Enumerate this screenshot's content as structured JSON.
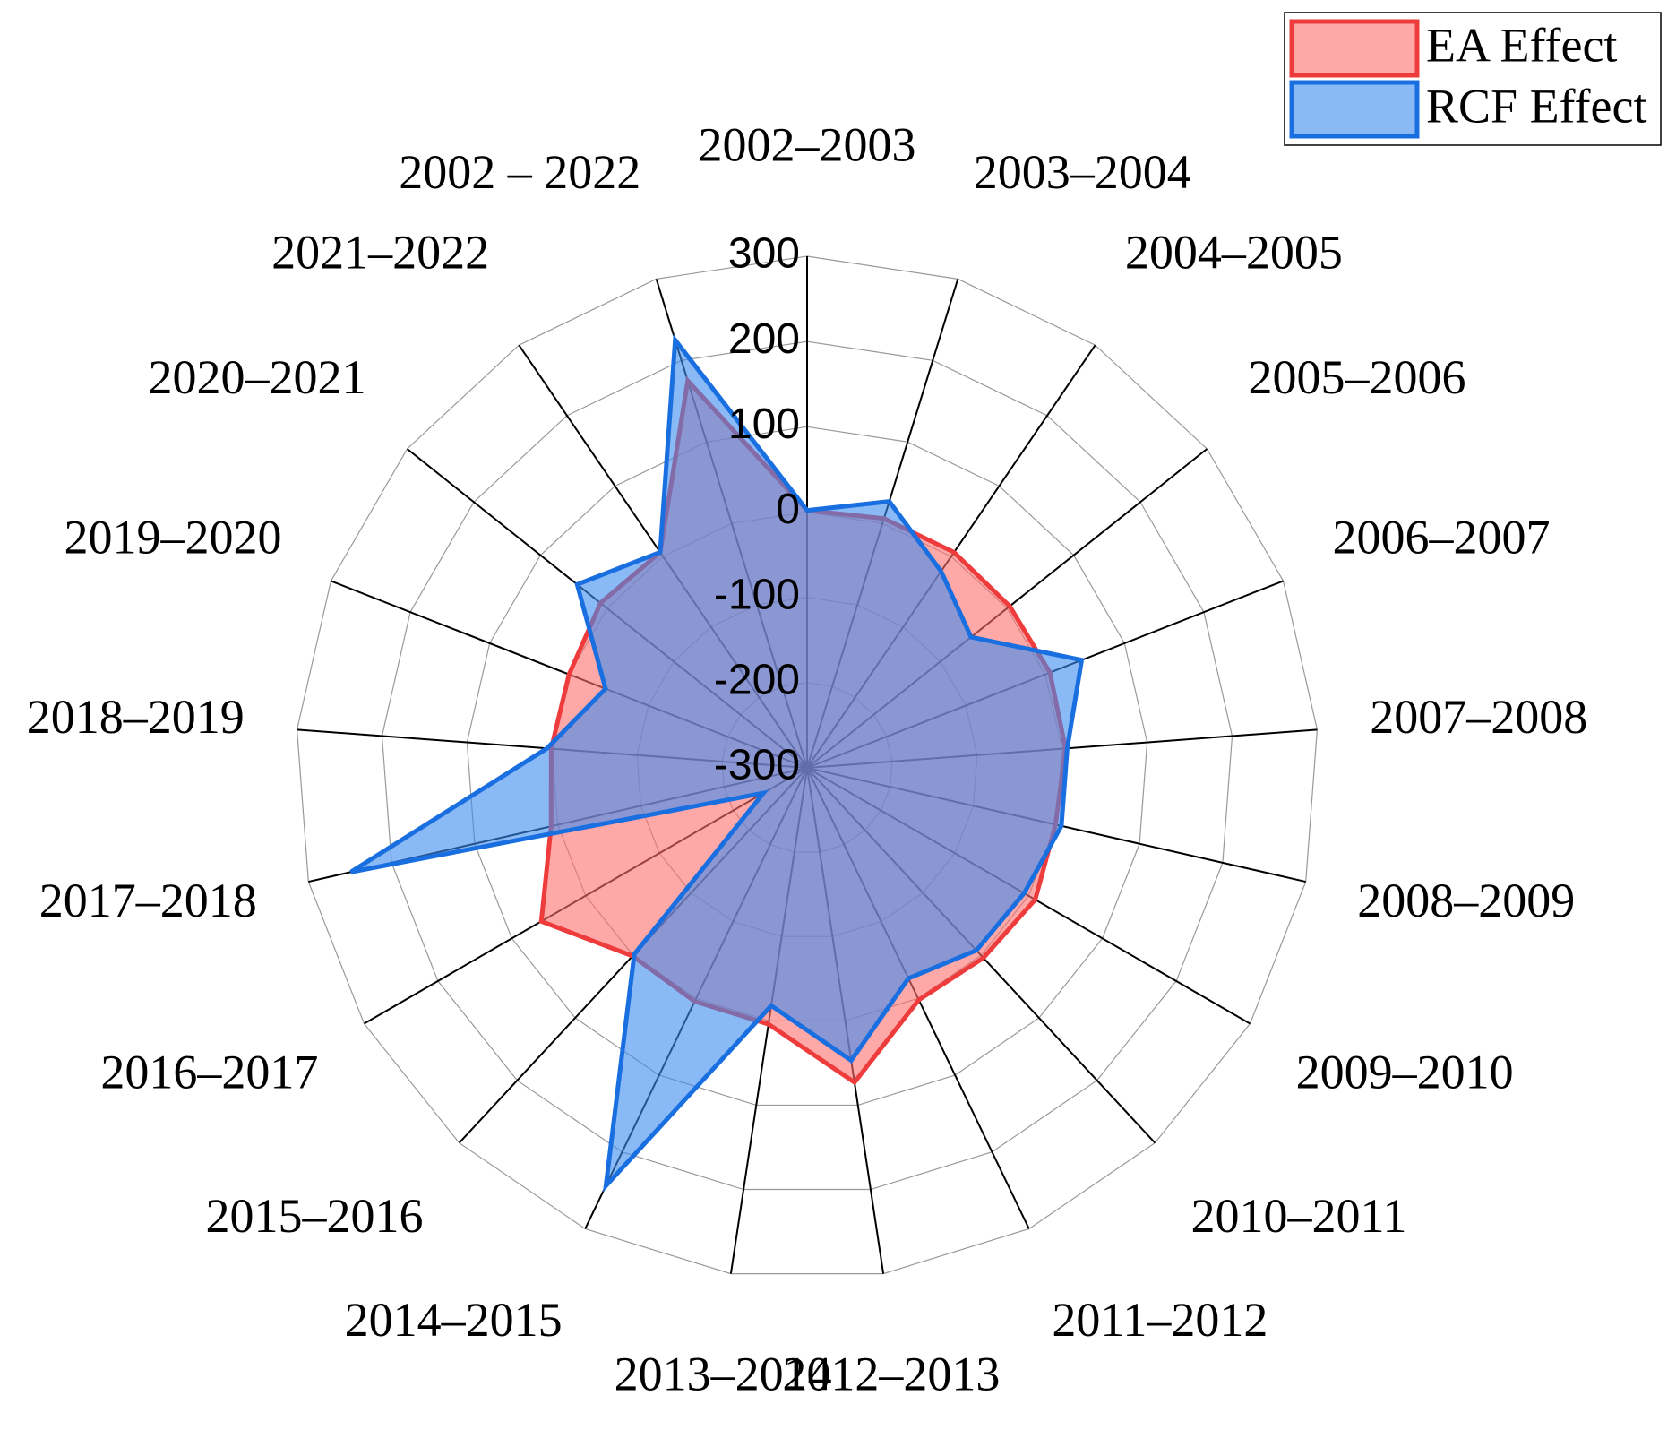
{
  "chart_data": {
    "type": "radar",
    "categories": [
      "2002–2003",
      "2003–2004",
      "2004–2005",
      "2005–2006",
      "2006–2007",
      "2007–2008",
      "2008–2009",
      "2009–2010",
      "2010–2011",
      "2011–2012",
      "2012–2013",
      "2013–2014",
      "2014–2015",
      "2015–2016",
      "2016–2017",
      "2017–2018",
      "2018–2019",
      "2019–2020",
      "2020–2021",
      "2021–2022",
      "2002 – 2022"
    ],
    "series": [
      {
        "name": "EA Effect",
        "color": "#ee3b3b",
        "fill": "rgba(255,110,110,0.6)",
        "values": [
          2,
          6,
          6,
          4,
          6,
          4,
          -1,
          9,
          4,
          2,
          73,
          4,
          4,
          1,
          60,
          8,
          1,
          0,
          10,
          6,
          175
        ]
      },
      {
        "name": "RCF Effect",
        "color": "#1a6fe0",
        "fill": "rgba(60,140,240,0.6)",
        "values": [
          2,
          27,
          -21,
          -54,
          46,
          6,
          6,
          -6,
          -8,
          -26,
          47,
          -18,
          244,
          -2,
          -241,
          249,
          6,
          -46,
          45,
          6,
          225
        ]
      }
    ],
    "ylim": [
      -300,
      300
    ],
    "yticks": [
      -300,
      -200,
      -100,
      0,
      100,
      200,
      300
    ],
    "grid": true,
    "legend": "top-right"
  }
}
